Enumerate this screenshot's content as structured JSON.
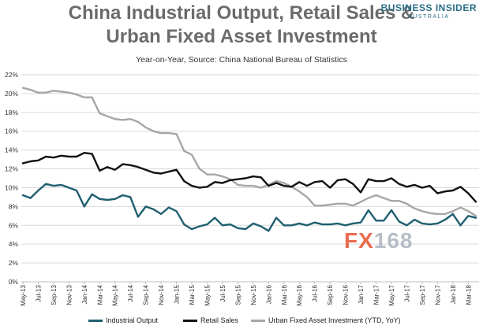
{
  "header": {
    "title_line1": "China Industrial Output, Retail Sales &",
    "title_line2": "Urban Fixed Asset Investment",
    "subtitle": "Year-on-Year, Source: China National  Bureau of Statistics"
  },
  "brand": {
    "name": "BUSINESS INSIDER",
    "region": "AUSTRALIA"
  },
  "watermark": {
    "part1": "FX",
    "part2": "168"
  },
  "chart_data": {
    "type": "line",
    "title": "China Industrial Output, Retail Sales & Urban Fixed Asset Investment",
    "subtitle": "Year-on-Year, Source: China National  Bureau of Statistics",
    "ylim": [
      0,
      22
    ],
    "yticks": [
      "0%",
      "2%",
      "4%",
      "6%",
      "8%",
      "10%",
      "12%",
      "14%",
      "16%",
      "18%",
      "20%",
      "22%"
    ],
    "xticks": [
      "May-13",
      "Jul-13",
      "Sep-13",
      "Nov-13",
      "Jan-14",
      "Mar-14",
      "May-14",
      "Jul-14",
      "Sep-14",
      "Nov-14",
      "Jan-15",
      "Mar-15",
      "May-15",
      "Jul-15",
      "Sep-15",
      "Nov-15",
      "Jan-16",
      "Mar-16",
      "May-16",
      "Jul-16",
      "Sep-16",
      "Nov-16",
      "Jan-17",
      "Mar-17",
      "May-17",
      "Jul-17",
      "Sep-17",
      "Nov-17",
      "Jan-18",
      "Mar-18"
    ],
    "categories": [
      "May-13",
      "Jun-13",
      "Jul-13",
      "Aug-13",
      "Sep-13",
      "Oct-13",
      "Nov-13",
      "Dec-13",
      "Jan-14",
      "Feb-14",
      "Mar-14",
      "Apr-14",
      "May-14",
      "Jun-14",
      "Jul-14",
      "Aug-14",
      "Sep-14",
      "Oct-14",
      "Nov-14",
      "Dec-14",
      "Jan-15",
      "Feb-15",
      "Mar-15",
      "Apr-15",
      "May-15",
      "Jun-15",
      "Jul-15",
      "Aug-15",
      "Sep-15",
      "Oct-15",
      "Nov-15",
      "Dec-15",
      "Jan-16",
      "Feb-16",
      "Mar-16",
      "Apr-16",
      "May-16",
      "Jun-16",
      "Jul-16",
      "Aug-16",
      "Sep-16",
      "Oct-16",
      "Nov-16",
      "Dec-16",
      "Jan-17",
      "Feb-17",
      "Mar-17",
      "Apr-17",
      "May-17",
      "Jun-17",
      "Jul-17",
      "Aug-17",
      "Sep-17",
      "Oct-17",
      "Nov-17",
      "Dec-17",
      "Jan-18",
      "Feb-18",
      "Mar-18",
      "Apr-18"
    ],
    "series": [
      {
        "name": "Industrial Output",
        "color": "#1f5f70",
        "values": [
          9.2,
          8.9,
          9.7,
          10.4,
          10.2,
          10.3,
          10.0,
          9.7,
          8.0,
          9.3,
          8.8,
          8.7,
          8.8,
          9.2,
          9.0,
          6.9,
          8.0,
          7.7,
          7.2,
          7.9,
          7.5,
          6.1,
          5.6,
          5.9,
          6.1,
          6.8,
          6.0,
          6.1,
          5.7,
          5.6,
          6.2,
          5.9,
          5.4,
          6.8,
          6.0,
          6.0,
          6.2,
          6.0,
          6.3,
          6.1,
          6.1,
          6.2,
          6.0,
          6.2,
          6.3,
          7.6,
          6.5,
          6.5,
          7.6,
          6.4,
          6.0,
          6.6,
          6.2,
          6.1,
          6.2,
          6.6,
          7.2,
          6.0,
          7.0,
          6.8
        ]
      },
      {
        "name": "Retail Sales",
        "color": "#111111",
        "values": [
          12.6,
          12.8,
          12.9,
          13.3,
          13.2,
          13.4,
          13.3,
          13.3,
          13.7,
          13.6,
          11.8,
          12.2,
          11.9,
          12.5,
          12.4,
          12.2,
          11.9,
          11.6,
          11.5,
          11.7,
          11.9,
          10.7,
          10.2,
          10.0,
          10.1,
          10.6,
          10.5,
          10.8,
          10.9,
          11.0,
          11.2,
          11.1,
          10.2,
          10.5,
          10.2,
          10.1,
          10.6,
          10.2,
          10.6,
          10.7,
          10.0,
          10.8,
          10.9,
          10.4,
          9.5,
          10.9,
          10.7,
          10.7,
          11.0,
          10.4,
          10.1,
          10.3,
          10.0,
          10.2,
          9.4,
          9.6,
          9.7,
          10.1,
          9.4,
          8.5
        ]
      },
      {
        "name": "Urban Fixed Asset Investment (YTD, YoY)",
        "color": "#a6a6a6",
        "values": [
          20.6,
          20.4,
          20.1,
          20.1,
          20.3,
          20.2,
          20.1,
          19.9,
          19.6,
          19.6,
          17.9,
          17.6,
          17.3,
          17.2,
          17.3,
          17.0,
          16.4,
          16.0,
          15.8,
          15.8,
          15.7,
          13.9,
          13.5,
          12.0,
          11.4,
          11.4,
          11.2,
          10.9,
          10.3,
          10.2,
          10.2,
          10.0,
          10.3,
          10.7,
          10.5,
          10.1,
          9.6,
          9.0,
          8.1,
          8.1,
          8.2,
          8.3,
          8.3,
          8.1,
          8.5,
          8.9,
          9.2,
          8.9,
          8.6,
          8.6,
          8.3,
          7.8,
          7.5,
          7.3,
          7.2,
          7.2,
          7.5,
          7.9,
          7.5,
          7.0
        ]
      }
    ]
  },
  "legend": [
    {
      "label": "Industrial Output"
    },
    {
      "label": "Retail Sales"
    },
    {
      "label": "Urban Fixed Asset Investment (YTD, YoY)"
    }
  ]
}
